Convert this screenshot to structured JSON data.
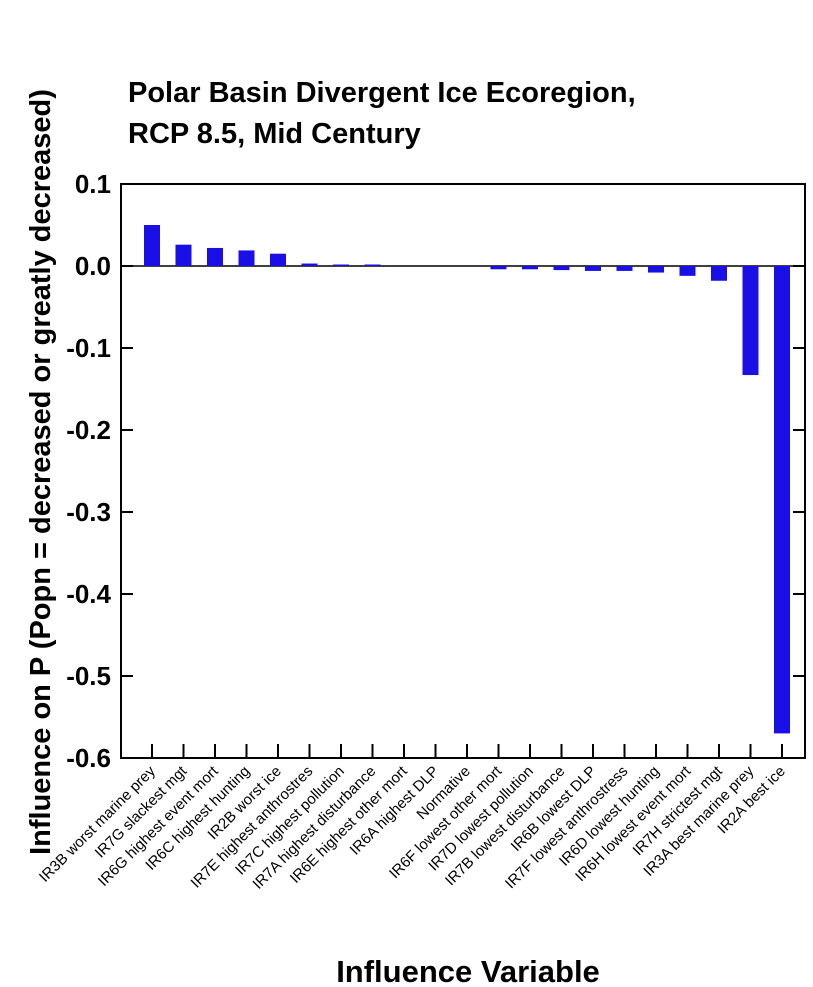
{
  "chart_data": {
    "type": "bar",
    "title": [
      "Polar Basin Divergent Ice Ecoregion,",
      "RCP 8.5, Mid Century"
    ],
    "xlabel": "Influence Variable",
    "ylabel": "Influence on P (Popn = decreased or greatly decreased)",
    "ylim": [
      -0.6,
      0.1
    ],
    "yticks": [
      0.1,
      0.0,
      -0.1,
      -0.2,
      -0.3,
      -0.4,
      -0.5,
      -0.6
    ],
    "ytick_labels": [
      "0.1",
      "0.0",
      "-0.1",
      "-0.2",
      "-0.3",
      "-0.4",
      "-0.5",
      "-0.6"
    ],
    "bar_color": "#1a10e6",
    "grid": false,
    "categories": [
      "IR3B worst marine prey",
      "IR7G slackest mgt",
      "IR6G highest event mort",
      "IR6C highest hunting",
      "IR2B worst ice",
      "IR7E highest anthrostres",
      "IR7C highest pollution",
      "IR7A highest disturbance",
      "IR6E highest other mort",
      "IR6A highest DLP",
      "Normative",
      "IR6F lowest other mort",
      "IR7D lowest pollution",
      "IR7B lowest disturbance",
      "IR6B lowest DLP",
      "IR7F lowest anthrostress",
      "IR6D lowest hunting",
      "IR6H lowest event mort",
      "IR7H strictest mgt",
      "IR3A best marine prey",
      "IR2A best ice"
    ],
    "values": [
      0.05,
      0.026,
      0.022,
      0.019,
      0.015,
      0.003,
      0.001,
      0.001,
      0.0,
      0.0,
      0.0,
      -0.004,
      -0.004,
      -0.005,
      -0.006,
      -0.006,
      -0.008,
      -0.012,
      -0.018,
      -0.133,
      -0.57
    ]
  }
}
